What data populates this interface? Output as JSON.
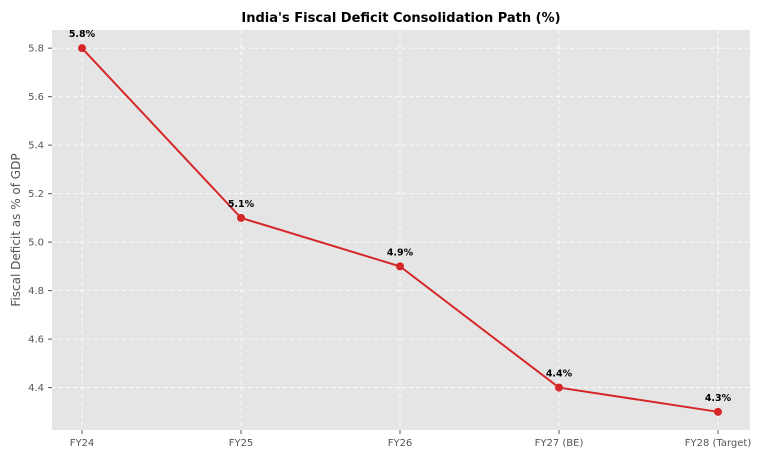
{
  "chart_data": {
    "type": "line",
    "title": "India's Fiscal Deficit Consolidation Path (%)",
    "xlabel": "",
    "ylabel": "Fiscal Deficit as % of GDP",
    "categories": [
      "FY24",
      "FY25",
      "FY26",
      "FY27 (BE)",
      "FY28 (Target)"
    ],
    "values": [
      5.8,
      5.1,
      4.9,
      4.4,
      4.3
    ],
    "data_labels": [
      "5.8%",
      "5.1%",
      "4.9%",
      "4.4%",
      "4.3%"
    ],
    "ylim": [
      4.225,
      5.875
    ],
    "yticks": [
      4.4,
      4.6,
      4.8,
      5.0,
      5.2,
      5.4,
      5.6,
      5.8
    ],
    "ytick_labels": [
      "4.4",
      "4.6",
      "4.8",
      "5.0",
      "5.2",
      "5.4",
      "5.6",
      "5.8"
    ],
    "grid": true,
    "colors": {
      "line": "#d62728",
      "background": "#e5e5e5",
      "grid": "#ffffff"
    }
  }
}
